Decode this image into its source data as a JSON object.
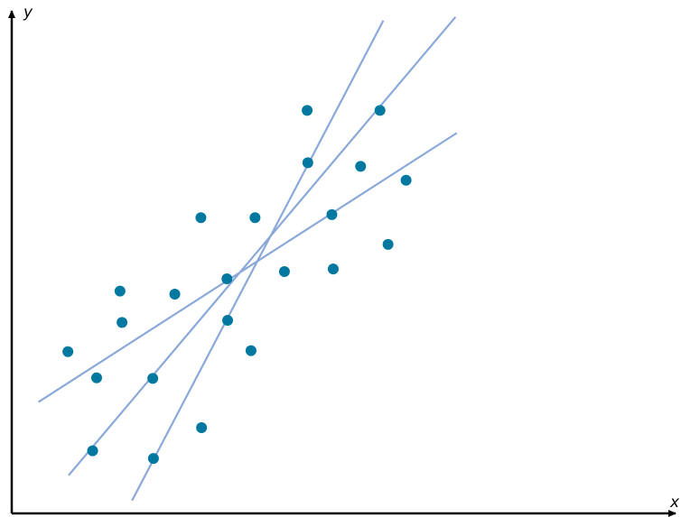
{
  "chart_data": {
    "type": "scatter",
    "title": "",
    "xlabel": "x",
    "ylabel": "y",
    "xlim": [
      0,
      100
    ],
    "ylim": [
      0,
      100
    ],
    "grid": false,
    "legend": "none",
    "colors": {
      "points": "#0078a0",
      "lines": "#8aa8d8",
      "axes": "#000000"
    },
    "points": [
      {
        "x": 8.4,
        "y": 31.5
      },
      {
        "x": 12.7,
        "y": 26.4
      },
      {
        "x": 12.1,
        "y": 12.2
      },
      {
        "x": 16.2,
        "y": 43.3
      },
      {
        "x": 16.5,
        "y": 37.2
      },
      {
        "x": 21.1,
        "y": 26.3
      },
      {
        "x": 21.2,
        "y": 10.7
      },
      {
        "x": 24.4,
        "y": 42.7
      },
      {
        "x": 28.3,
        "y": 57.6
      },
      {
        "x": 28.4,
        "y": 16.7
      },
      {
        "x": 32.2,
        "y": 45.7
      },
      {
        "x": 32.3,
        "y": 37.6
      },
      {
        "x": 35.8,
        "y": 31.7
      },
      {
        "x": 36.4,
        "y": 57.6
      },
      {
        "x": 40.8,
        "y": 47.1
      },
      {
        "x": 44.2,
        "y": 78.5
      },
      {
        "x": 44.3,
        "y": 68.3
      },
      {
        "x": 47.9,
        "y": 58.2
      },
      {
        "x": 48.1,
        "y": 47.6
      },
      {
        "x": 52.2,
        "y": 67.6
      },
      {
        "x": 56.3,
        "y": 52.4
      },
      {
        "x": 55.1,
        "y": 78.5
      },
      {
        "x": 59.0,
        "y": 64.9
      }
    ],
    "lines": [
      {
        "x1": 4.0,
        "y1": 21.7,
        "x2": 66.6,
        "y2": 74.1
      },
      {
        "x1": 8.5,
        "y1": 7.4,
        "x2": 66.4,
        "y2": 96.7
      },
      {
        "x1": 18.0,
        "y1": 2.5,
        "x2": 55.6,
        "y2": 96.0
      }
    ]
  }
}
